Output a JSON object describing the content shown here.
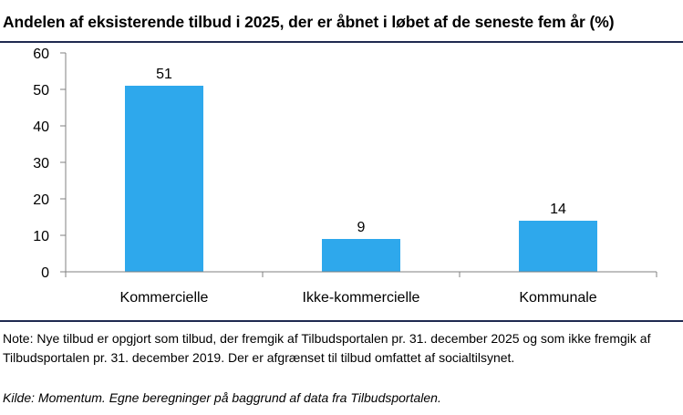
{
  "title": "Andelen af eksisterende tilbud i 2025, der er åbnet i løbet af de seneste fem år (%)",
  "chart_data": {
    "type": "bar",
    "categories": [
      "Kommercielle",
      "Ikke-kommercielle",
      "Kommunale"
    ],
    "values": [
      51,
      9,
      14
    ],
    "yticks": [
      0,
      10,
      20,
      30,
      40,
      50,
      60
    ],
    "ylim": [
      0,
      60
    ],
    "bar_color": "#2ea8ec",
    "grid": false,
    "data_labels": true,
    "legend": "none"
  },
  "note": "Note: Nye tilbud er opgjort som tilbud, der fremgik af Tilbudsportalen pr. 31. december 2025 og som ikke fremgik af Tilbudsportalen pr. 31. december 2019. Der er afgrænset til tilbud omfattet af socialtilsynet.",
  "source": "Kilde: Momentum. Egne beregninger på baggrund af data fra Tilbudsportalen."
}
